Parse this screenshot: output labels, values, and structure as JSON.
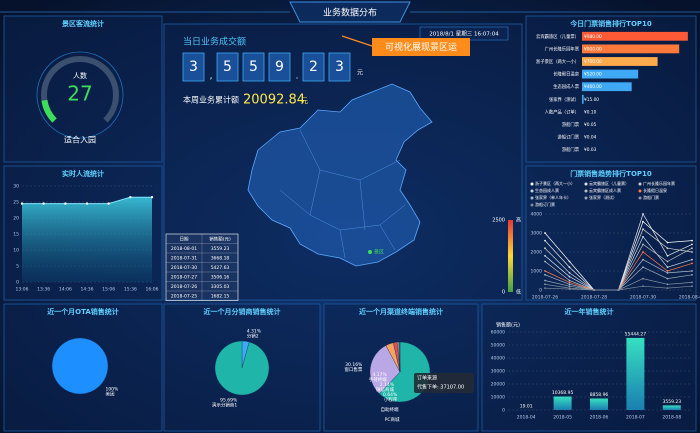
{
  "header": {
    "title": "业务数据分布",
    "datetime": "2018/8/1 星期三 16:07:04",
    "banner": "可视化展现景区运"
  },
  "visitors": {
    "title": "景区客流统计",
    "label": "人数",
    "value": 27,
    "range": [
      0,
      200
    ],
    "status": "适合入园"
  },
  "center": {
    "daily_label": "当日业务成交额",
    "daily_digits": [
      "3",
      ",",
      "5",
      "5",
      "9",
      ".",
      "2",
      "3"
    ],
    "daily_unit": "元",
    "weekly_label": "本周业务累计额",
    "weekly_value": "20092.84",
    "weekly_unit": "元",
    "map_marker": "景区",
    "scale": {
      "max": 2500,
      "min": 0,
      "high": "高",
      "low": "低"
    },
    "table": {
      "header": [
        "日期",
        "销售额(元)"
      ],
      "rows": [
        [
          "2018-08-01",
          "3559.23"
        ],
        [
          "2018-07-31",
          "3668.18"
        ],
        [
          "2018-07-30",
          "5427.63"
        ],
        [
          "2018-07-27",
          "3506.16"
        ],
        [
          "2018-07-26",
          "3305.03"
        ],
        [
          "2018-07-25",
          "1682.15"
        ]
      ]
    }
  },
  "chart_data": [
    {
      "type": "area",
      "title": "实时人流统计",
      "categories": [
        "13:06",
        "13:36",
        "14:06",
        "14:36",
        "15:06",
        "15:36",
        "16:06"
      ],
      "values": [
        24.5,
        24.5,
        24.5,
        24.5,
        24.5,
        26.5,
        26.5
      ],
      "color": "#7fe7ff",
      "ylim": [
        0,
        30
      ],
      "yticks": [
        0,
        5,
        10,
        15,
        20,
        25,
        30
      ],
      "grid": true
    },
    {
      "type": "hbar",
      "title": "今日门票销售排行TOP10",
      "categories": [
        "云宾霸旅区（儿童票）",
        "广州长隆乐园年票",
        "浙子景区（两大一小）",
        "长隆假日温泉",
        "生态园成人票",
        "张家界（测试）",
        "人数产品（订单）",
        "游船门票",
        "游船订门票",
        "游船门票"
      ],
      "values": [
        980,
        900,
        700,
        520,
        460,
        15,
        0.1,
        0.05,
        0.04,
        0.03
      ],
      "value_labels": [
        "¥980.00",
        "¥900.00",
        "¥700.00",
        "¥520.00",
        "¥460.00",
        "¥15.00",
        "¥0.10",
        "¥0.05",
        "¥0.04",
        "¥0.03"
      ],
      "colors": [
        "#ff5a36",
        "#ff7a3a",
        "#ffa94d",
        "#3fa9f5",
        "#3fa9f5",
        "#3fa9f5",
        "#3fa9f5",
        "#3fa9f5",
        "#3fa9f5",
        "#3fa9f5"
      ],
      "xlim": [
        0,
        1000
      ]
    },
    {
      "type": "line",
      "title": "门票销售趋势排行TOP10",
      "categories": [
        "2018-07-26",
        null,
        "2018-07-28",
        null,
        "2018-07-30",
        null,
        "2018-08-01"
      ],
      "ylim": [
        0,
        4000
      ],
      "yticks": [
        0,
        1000,
        2000,
        3000,
        4000
      ],
      "grid": true,
      "series": [
        {
          "name": "浙子景区（两大一小）",
          "color": "#ffffff",
          "values": [
            3000,
            1500,
            0,
            0,
            3600,
            2500,
            2600
          ]
        },
        {
          "name": "云宾霸旅区（儿童票）",
          "color": "#e8e8e8",
          "values": [
            2600,
            1200,
            0,
            0,
            4000,
            1800,
            2400
          ]
        },
        {
          "name": "广州长隆乐园年票",
          "color": "#d0d0d0",
          "values": [
            2200,
            900,
            0,
            0,
            3200,
            2200,
            2000
          ]
        },
        {
          "name": "生态园成人票",
          "color": "#c8d6e5",
          "values": [
            1800,
            700,
            0,
            0,
            2800,
            1200,
            1600
          ]
        },
        {
          "name": "云宾霸旅区成人票",
          "color": "#bfbfbf",
          "values": [
            1500,
            500,
            0,
            0,
            2400,
            1500,
            2200
          ]
        },
        {
          "name": "长隆假日温泉",
          "color": "#ff7a45",
          "values": [
            1000,
            400,
            0,
            0,
            2000,
            1000,
            1400
          ]
        },
        {
          "name": "张家界（单人年卡）",
          "color": "#a9b8c8",
          "values": [
            800,
            300,
            0,
            0,
            1600,
            900,
            1000
          ]
        },
        {
          "name": "张家界（测试）",
          "color": "#9aa8b6",
          "values": [
            500,
            200,
            0,
            0,
            1200,
            600,
            800
          ]
        },
        {
          "name": "游船门票",
          "color": "#8b97a3",
          "values": [
            300,
            100,
            0,
            0,
            600,
            300,
            400
          ]
        },
        {
          "name": "游船订门票",
          "color": "#7c8894",
          "values": [
            100,
            50,
            0,
            0,
            200,
            100,
            200
          ]
        }
      ]
    },
    {
      "type": "pie",
      "title": "近一个月OTA销售统计",
      "categories": [
        "美团"
      ],
      "values": [
        100
      ],
      "value_labels": [
        "100%"
      ],
      "colors": [
        "#1e8fff"
      ]
    },
    {
      "type": "pie",
      "title": "近一个月分销商销售统计",
      "categories": [
        "分销2",
        "演示分销商1"
      ],
      "values": [
        4.31,
        95.69
      ],
      "value_labels": [
        "4.31%",
        "95.69%"
      ],
      "colors": [
        "#3fa9f5",
        "#1fb5a8"
      ]
    },
    {
      "type": "pie",
      "title": "近一个月渠道终端销售统计",
      "categories": [
        "代售下单",
        "窗口售票",
        "手持终端",
        "微信商城",
        "小程序",
        "自助终端",
        "PC商城"
      ],
      "values": [
        62.09,
        30.16,
        4.17,
        2.14,
        0.64,
        0.4,
        0.4
      ],
      "value_labels": [
        null,
        "30.16%",
        "4.17%",
        "2.14%",
        "0.64%",
        null,
        null
      ],
      "colors": [
        "#1fb5a8",
        "#b9a7e6",
        "#f4a460",
        "#e05050",
        "#ffd54f",
        "#7ec8e3",
        "#5a7bd8"
      ],
      "tooltip": {
        "title": "订单来源",
        "text": "代售下单: 37107.00"
      }
    },
    {
      "type": "bar",
      "title": "近一年销售统计",
      "ylabel": "销售额(元)",
      "categories": [
        "2018-04",
        "2018-05",
        "2018-06",
        "2018-07",
        "2018-08"
      ],
      "values": [
        19.01,
        10368.95,
        8858.96,
        55444.27,
        3559.23
      ],
      "ylim": [
        0,
        60000
      ],
      "yticks": [
        0,
        10000,
        20000,
        30000,
        40000,
        50000,
        60000
      ],
      "grid": true
    }
  ]
}
